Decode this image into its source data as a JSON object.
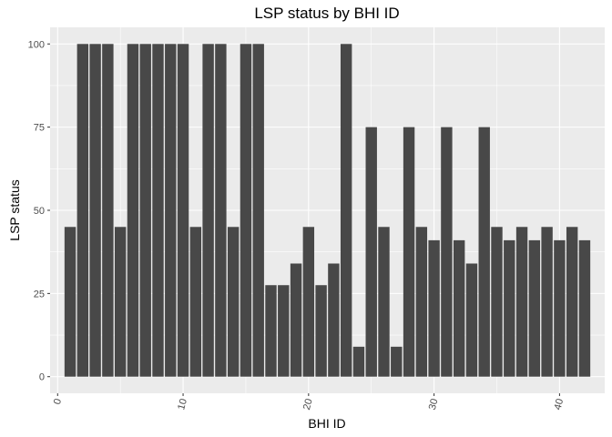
{
  "chart_data": {
    "type": "bar",
    "title": "LSP status by BHI ID",
    "xlabel": "BHI ID",
    "ylabel": "LSP status",
    "x": [
      1,
      2,
      3,
      4,
      5,
      6,
      7,
      8,
      9,
      10,
      11,
      12,
      13,
      14,
      15,
      16,
      17,
      18,
      19,
      20,
      21,
      22,
      23,
      24,
      25,
      26,
      27,
      28,
      29,
      30,
      31,
      32,
      33,
      34,
      35,
      36,
      37,
      38,
      39,
      40,
      41,
      42
    ],
    "values": [
      45,
      100,
      100,
      100,
      45,
      100,
      100,
      100,
      100,
      100,
      45,
      100,
      100,
      45,
      100,
      100,
      27.5,
      27.5,
      34,
      45,
      27.5,
      34,
      100,
      9,
      75,
      45,
      9,
      75,
      45,
      41,
      75,
      41,
      34,
      75,
      45,
      41,
      45,
      41,
      45,
      41,
      45,
      41
    ],
    "xlim": [
      -0.6,
      43.6
    ],
    "ylim": [
      -5,
      105
    ],
    "xticks": [
      0,
      10,
      20,
      30,
      40
    ],
    "xtick_labels": [
      "0",
      "10",
      "20",
      "30",
      "40"
    ],
    "yticks": [
      0,
      25,
      50,
      75,
      100
    ],
    "ytick_labels": [
      "0",
      "25",
      "50",
      "75",
      "100"
    ],
    "grid": true,
    "colors": {
      "bar": "#484848",
      "panel": "#ebebeb",
      "grid_major": "#ffffff",
      "tick": "#333333"
    }
  }
}
